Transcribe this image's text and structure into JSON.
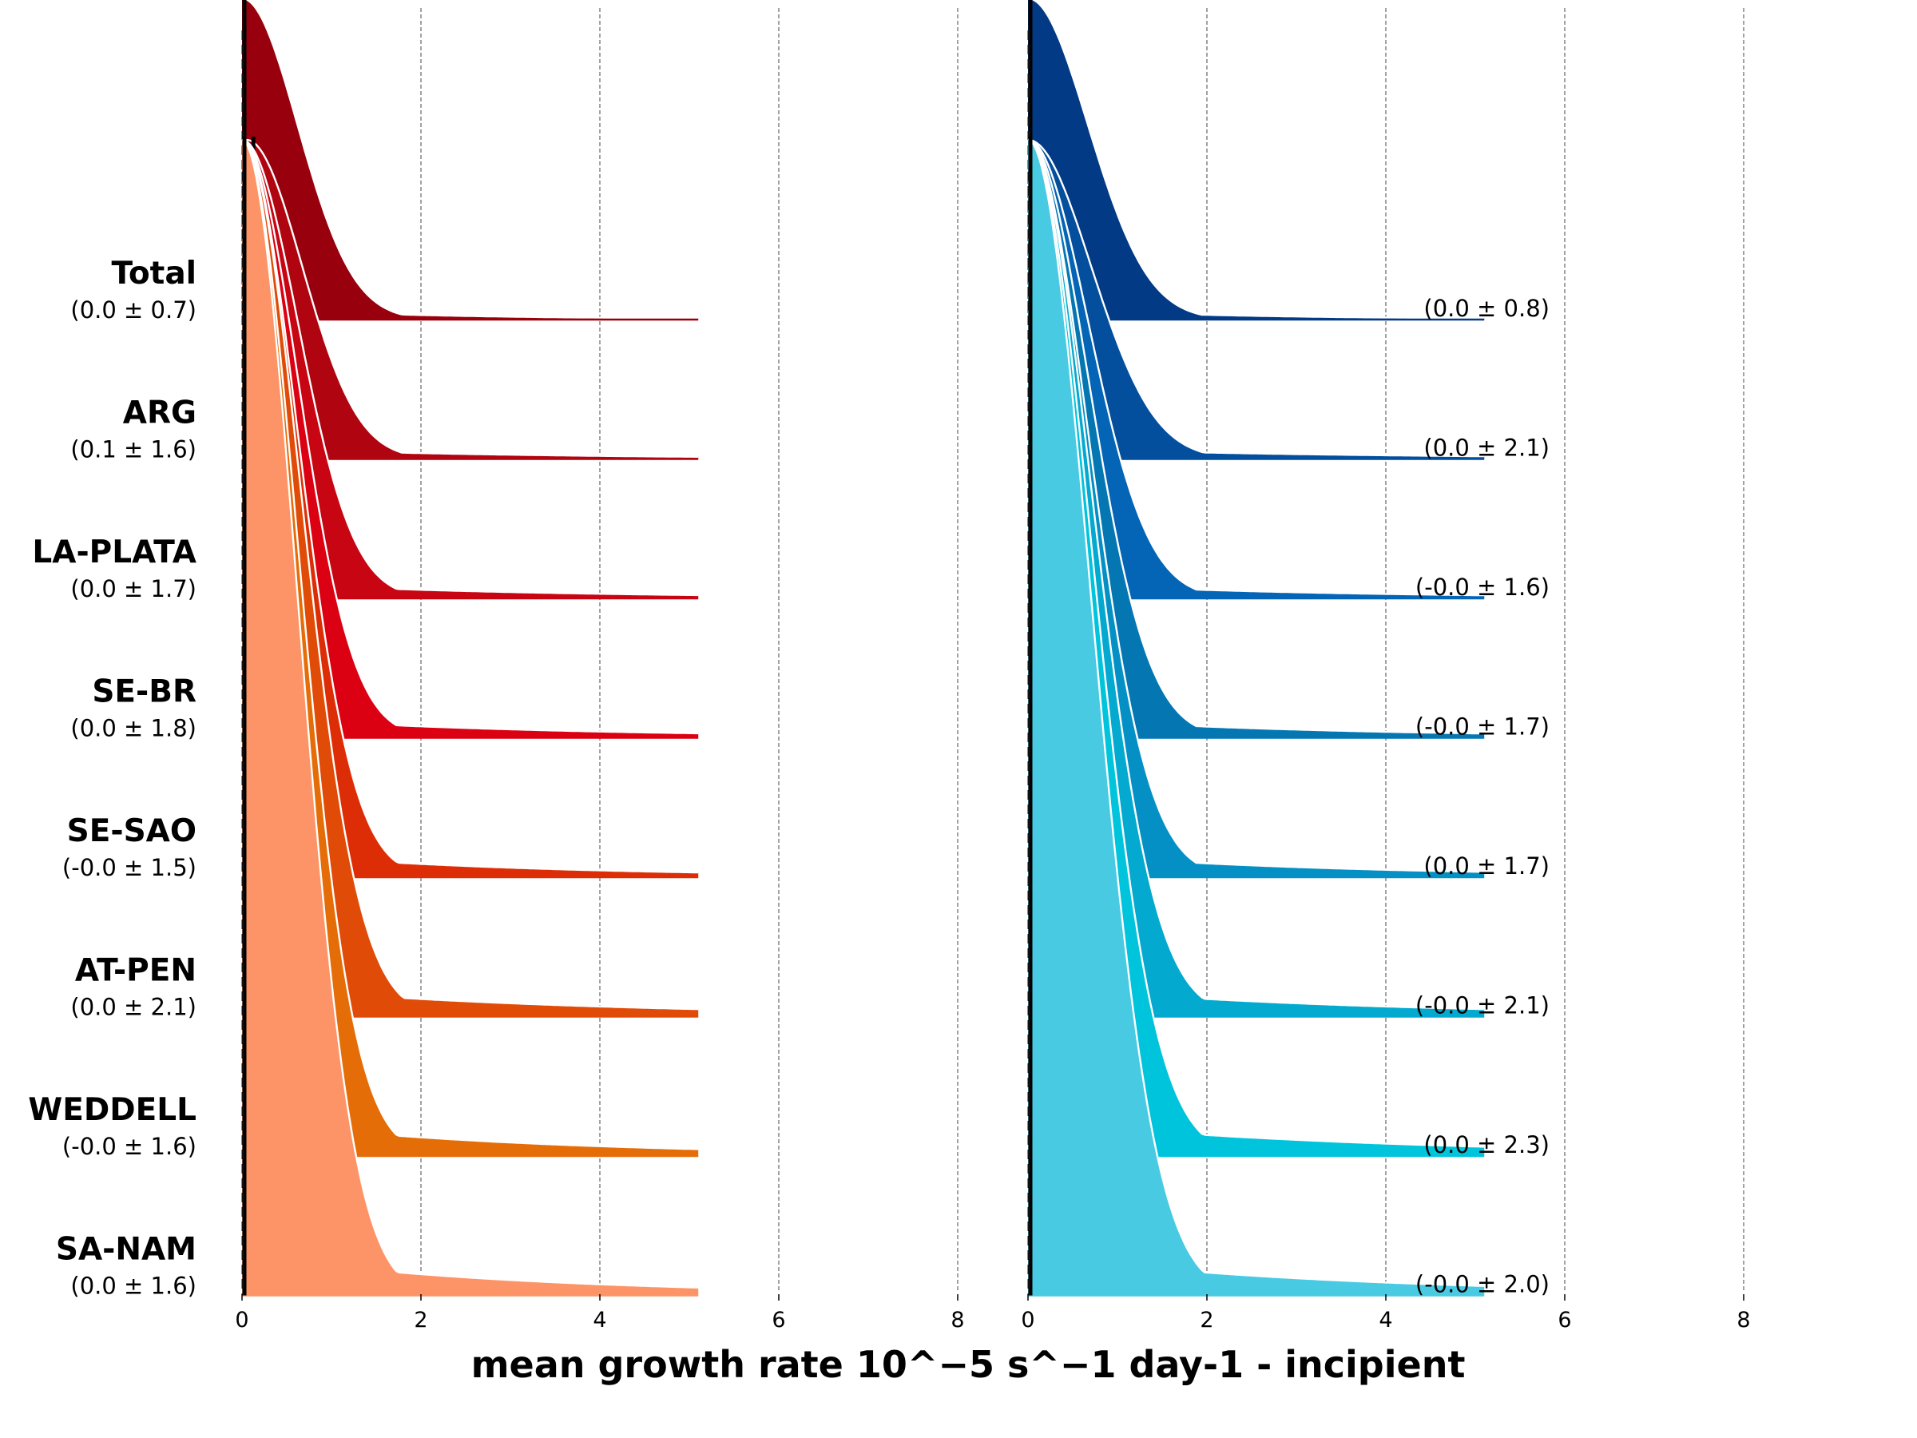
{
  "chart_data": {
    "type": "area",
    "subtype": "ridgeline (joyplot) density distributions",
    "xlabel": "mean growth rate 10^−5 s^−1 day-1 - incipient",
    "xlim": [
      0,
      8
    ],
    "xticks": [
      "0",
      "2",
      "4",
      "6",
      "8"
    ],
    "grid": "vertical dashed gridlines at each x tick",
    "regions": [
      "Total",
      "ARG",
      "LA-PLATA",
      "SE-BR",
      "SE-SAO",
      "AT-PEN",
      "WEDDELL",
      "SA-NAM"
    ],
    "panels": [
      {
        "name": "left",
        "colormap": "reds",
        "stats_position": "below region name",
        "series": [
          {
            "region": "Total",
            "stats": "(0.0 ± 0.7)",
            "color": "#99000d",
            "mean": 0.0,
            "std": 0.7
          },
          {
            "region": "ARG",
            "stats": "(0.1 ± 1.6)",
            "color": "#b00510",
            "mean": 0.1,
            "std": 1.6
          },
          {
            "region": "LA-PLATA",
            "stats": "(0.0 ± 1.7)",
            "color": "#c80512",
            "mean": 0.0,
            "std": 1.7
          },
          {
            "region": "SE-BR",
            "stats": "(0.0 ± 1.8)",
            "color": "#db0012",
            "mean": 0.0,
            "std": 1.8
          },
          {
            "region": "SE-SAO",
            "stats": "(-0.0 ± 1.5)",
            "color": "#dd2d06",
            "mean": -0.0,
            "std": 1.5
          },
          {
            "region": "AT-PEN",
            "stats": "(0.0 ± 2.1)",
            "color": "#e04b08",
            "mean": 0.0,
            "std": 2.1
          },
          {
            "region": "WEDDELL",
            "stats": "(-0.0 ± 1.6)",
            "color": "#e56d08",
            "mean": -0.0,
            "std": 1.6
          },
          {
            "region": "SA-NAM",
            "stats": "(0.0 ± 1.6)",
            "color": "#fd9467",
            "mean": 0.0,
            "std": 1.6
          }
        ]
      },
      {
        "name": "right",
        "colormap": "blues",
        "stats_position": "right side",
        "series": [
          {
            "region": "Total",
            "stats": "(0.0 ± 0.8)",
            "color": "#023a85",
            "mean": 0.0,
            "std": 0.8
          },
          {
            "region": "ARG",
            "stats": "(0.0 ± 2.1)",
            "color": "#034f9e",
            "mean": 0.0,
            "std": 2.1
          },
          {
            "region": "LA-PLATA",
            "stats": "(-0.0 ± 1.6)",
            "color": "#0464b5",
            "mean": -0.0,
            "std": 1.6
          },
          {
            "region": "SE-BR",
            "stats": "(-0.0 ± 1.7)",
            "color": "#0477b3",
            "mean": -0.0,
            "std": 1.7
          },
          {
            "region": "SE-SAO",
            "stats": "(0.0 ± 1.7)",
            "color": "#0490c4",
            "mean": 0.0,
            "std": 1.7
          },
          {
            "region": "AT-PEN",
            "stats": "(-0.0 ± 2.1)",
            "color": "#03a9cf",
            "mean": -0.0,
            "std": 2.1
          },
          {
            "region": "WEDDELL",
            "stats": "(0.0 ± 2.3)",
            "color": "#00c4dc",
            "mean": 0.0,
            "std": 2.3
          },
          {
            "region": "SA-NAM",
            "stats": "(-0.0 ± 2.0)",
            "color": "#49cae3",
            "mean": -0.0,
            "std": 2.0
          }
        ]
      }
    ]
  }
}
